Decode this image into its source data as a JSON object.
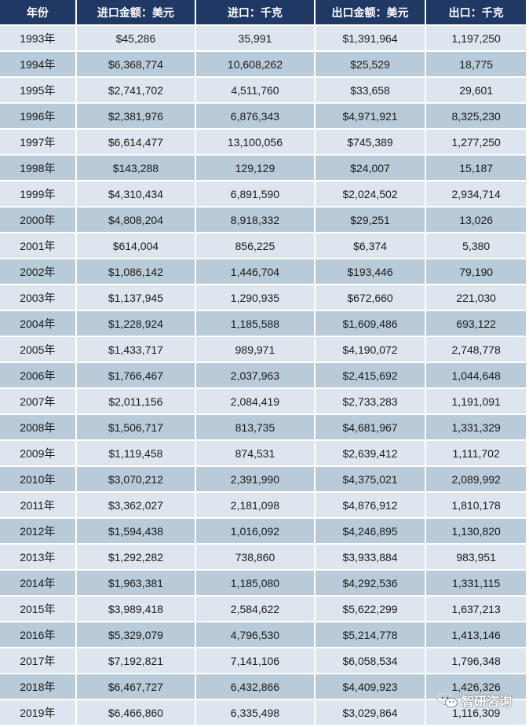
{
  "table": {
    "headers": [
      "年份",
      "进口金额：美元",
      "进口：千克",
      "出口金额：美元",
      "出口：千克"
    ],
    "rows": [
      [
        "1993年",
        "$45,286",
        "35,991",
        "$1,391,964",
        "1,197,250"
      ],
      [
        "1994年",
        "$6,368,774",
        "10,608,262",
        "$25,529",
        "18,775"
      ],
      [
        "1995年",
        "$2,741,702",
        "4,511,760",
        "$33,658",
        "29,601"
      ],
      [
        "1996年",
        "$2,381,976",
        "6,876,343",
        "$4,971,921",
        "8,325,230"
      ],
      [
        "1997年",
        "$6,614,477",
        "13,100,056",
        "$745,389",
        "1,277,250"
      ],
      [
        "1998年",
        "$143,288",
        "129,129",
        "$24,007",
        "15,187"
      ],
      [
        "1999年",
        "$4,310,434",
        "6,891,590",
        "$2,024,502",
        "2,934,714"
      ],
      [
        "2000年",
        "$4,808,204",
        "8,918,332",
        "$29,251",
        "13,026"
      ],
      [
        "2001年",
        "$614,004",
        "856,225",
        "$6,374",
        "5,380"
      ],
      [
        "2002年",
        "$1,086,142",
        "1,446,704",
        "$193,446",
        "79,190"
      ],
      [
        "2003年",
        "$1,137,945",
        "1,290,935",
        "$672,660",
        "221,030"
      ],
      [
        "2004年",
        "$1,228,924",
        "1,185,588",
        "$1,609,486",
        "693,122"
      ],
      [
        "2005年",
        "$1,433,717",
        "989,971",
        "$4,190,072",
        "2,748,778"
      ],
      [
        "2006年",
        "$1,766,467",
        "2,037,963",
        "$2,415,692",
        "1,044,648"
      ],
      [
        "2007年",
        "$2,011,156",
        "2,084,419",
        "$2,733,283",
        "1,191,091"
      ],
      [
        "2008年",
        "$1,506,717",
        "813,735",
        "$4,681,967",
        "1,331,329"
      ],
      [
        "2009年",
        "$1,119,458",
        "874,531",
        "$2,639,412",
        "1,111,702"
      ],
      [
        "2010年",
        "$3,070,212",
        "2,391,990",
        "$4,375,021",
        "2,089,992"
      ],
      [
        "2011年",
        "$3,362,027",
        "2,181,098",
        "$4,876,912",
        "1,810,178"
      ],
      [
        "2012年",
        "$1,594,438",
        "1,016,092",
        "$4,246,895",
        "1,130,820"
      ],
      [
        "2013年",
        "$1,292,282",
        "738,860",
        "$3,933,884",
        "983,951"
      ],
      [
        "2014年",
        "$1,963,381",
        "1,185,080",
        "$4,292,536",
        "1,331,115"
      ],
      [
        "2015年",
        "$3,989,418",
        "2,584,622",
        "$5,622,299",
        "1,637,213"
      ],
      [
        "2016年",
        "$5,329,079",
        "4,796,530",
        "$5,214,778",
        "1,413,146"
      ],
      [
        "2017年",
        "$7,192,821",
        "7,141,106",
        "$6,058,534",
        "1,796,348"
      ],
      [
        "2018年",
        "$6,467,727",
        "6,432,866",
        "$4,409,923",
        "1,426,326"
      ],
      [
        "2019年",
        "$6,466,860",
        "6,335,498",
        "$3,029,864",
        "1,116,309"
      ]
    ]
  },
  "watermark": {
    "text": "智研咨询",
    "icon": "wechat-icon"
  },
  "colors": {
    "header_bg": "#203864",
    "row_light": "#dde6ee",
    "row_dark": "#b9cbd8"
  }
}
